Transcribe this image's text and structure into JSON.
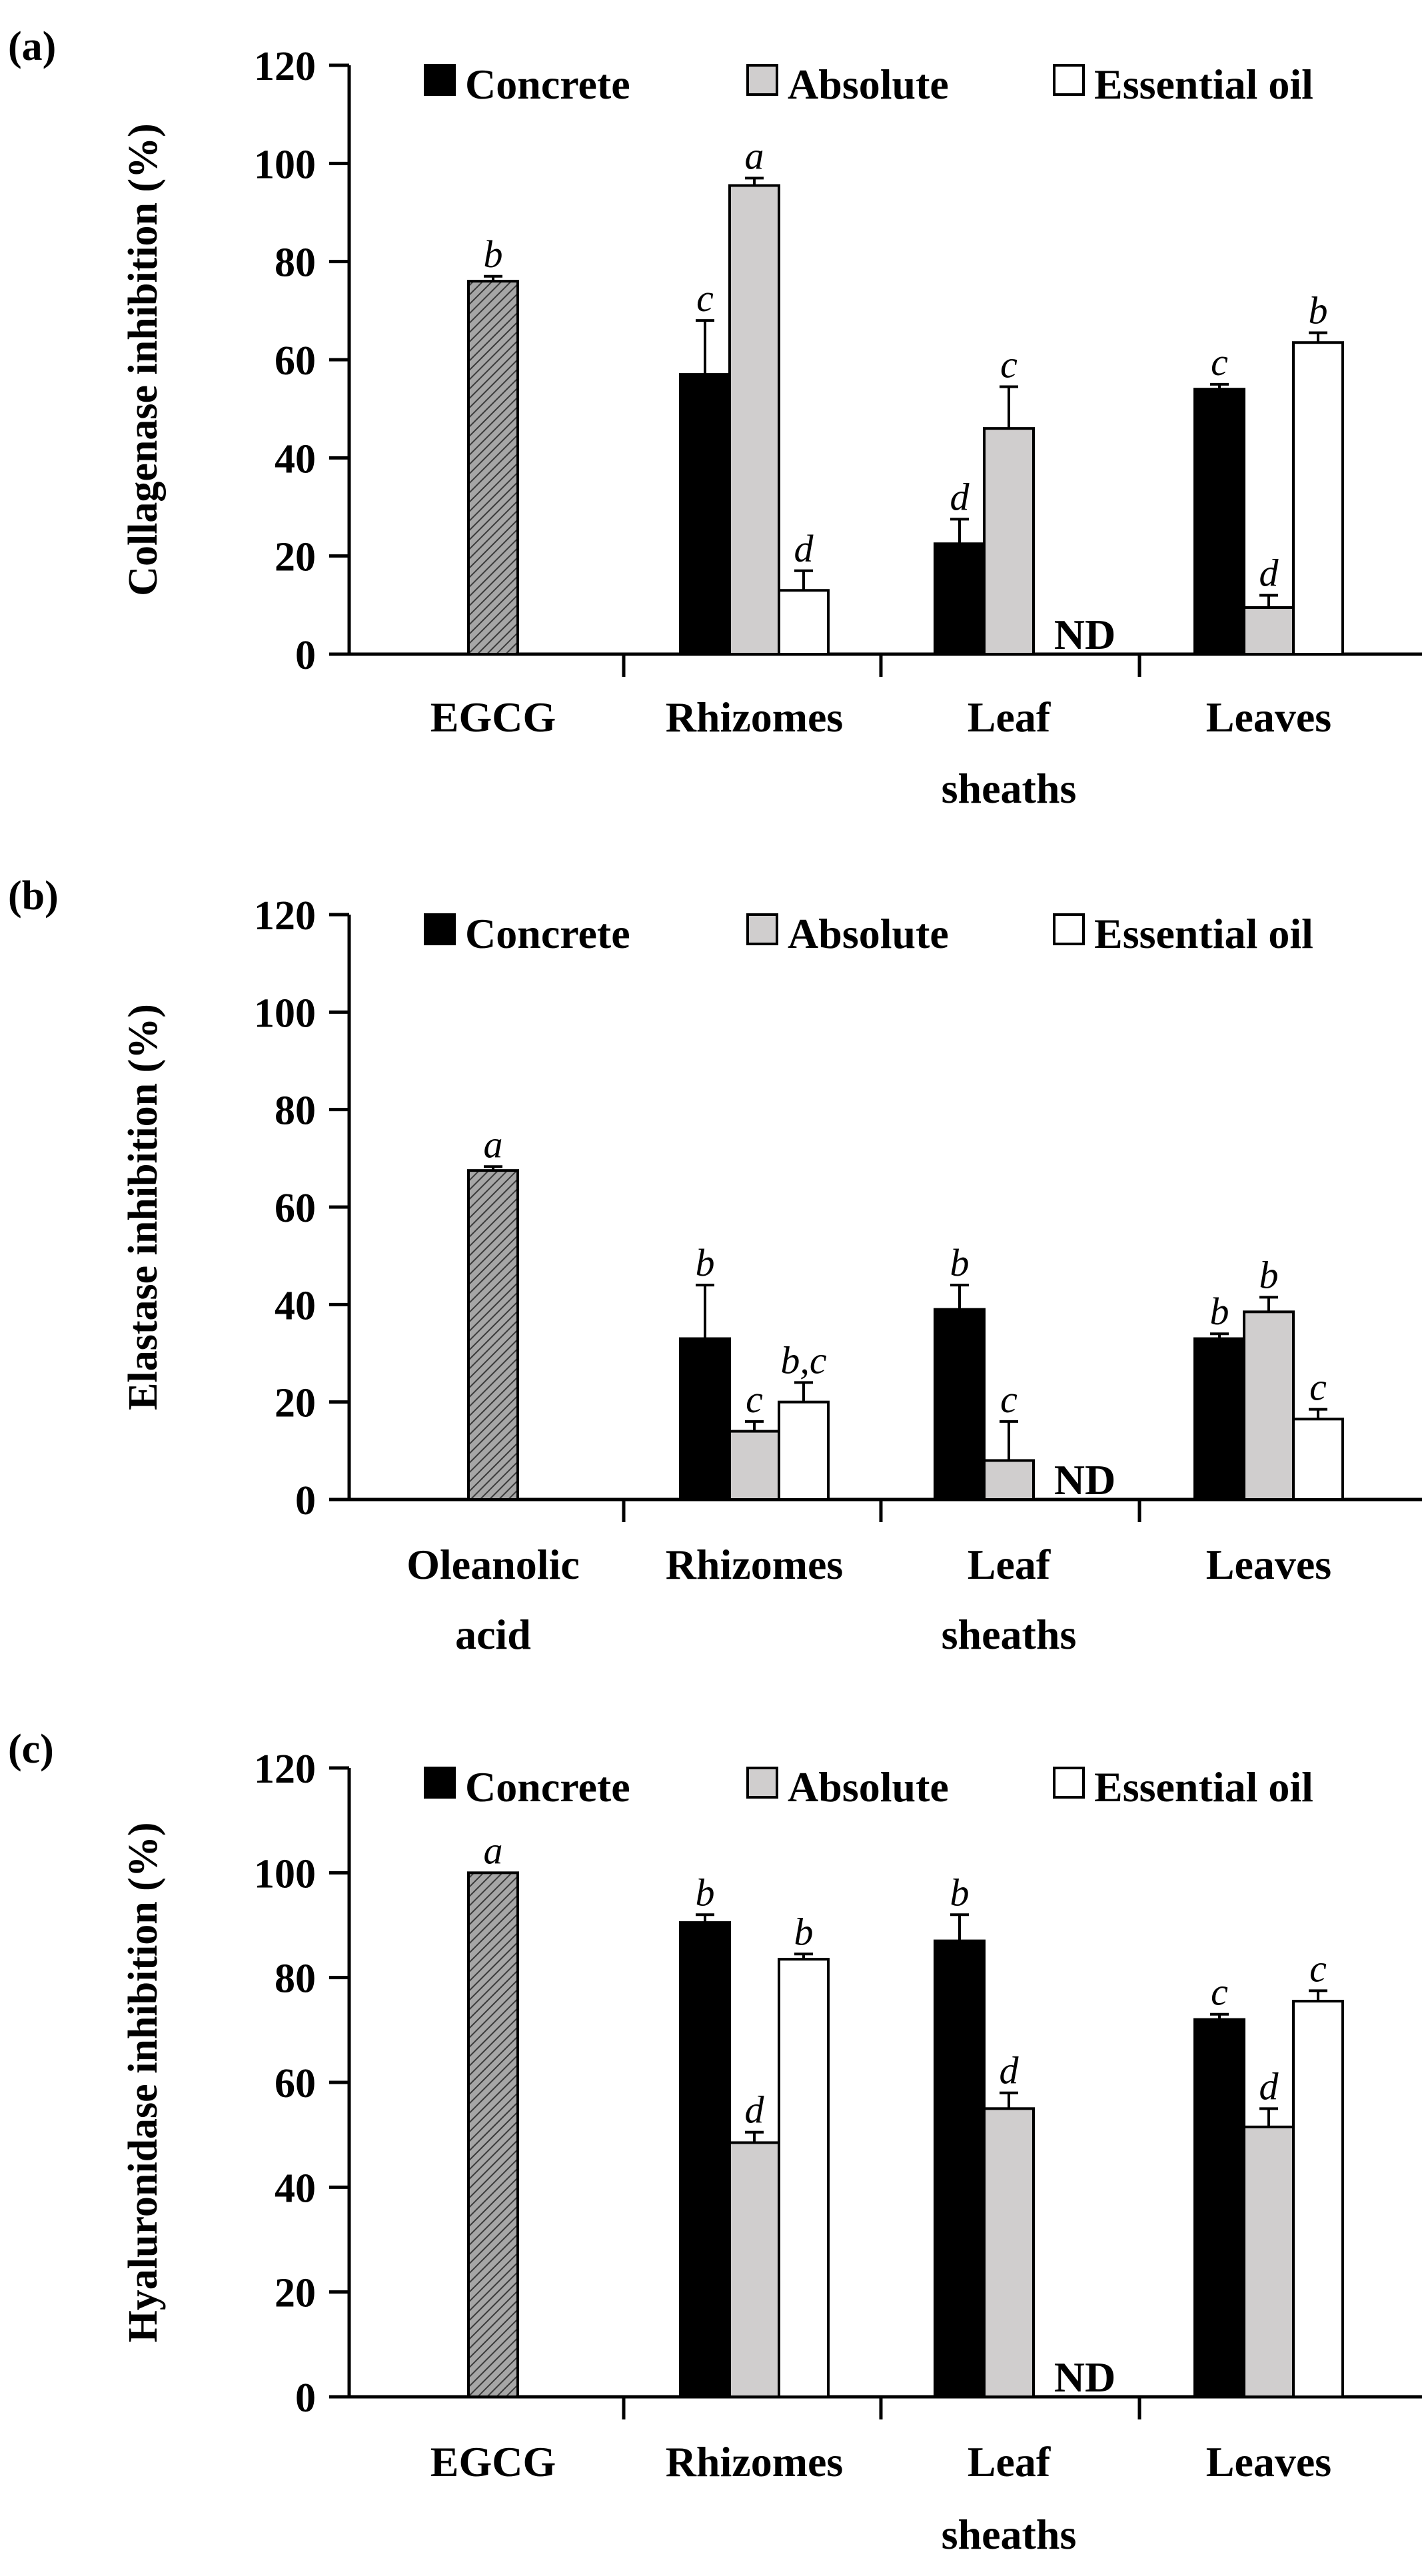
{
  "colors": {
    "concrete": "#000000",
    "absolute": "#d0cece",
    "essential_oil": "#ffffff",
    "control_hatch": "#a6a6a6",
    "stroke": "#000000"
  },
  "chart_data": [
    {
      "type": "bar",
      "panel": "(a)",
      "ylabel": "Collagenase inhibition (%)",
      "ylim": [
        0,
        120
      ],
      "yticks": [
        0,
        20,
        40,
        60,
        80,
        100,
        120
      ],
      "legend": {
        "placement": "top",
        "entries": [
          "Concrete",
          "Absolute",
          "Essential oil"
        ]
      },
      "categories": [
        {
          "label": [
            "EGCG"
          ],
          "control": true
        },
        {
          "label": [
            "Rhizomes"
          ]
        },
        {
          "label": [
            "Leaf",
            "sheaths"
          ]
        },
        {
          "label": [
            "Leaves"
          ]
        }
      ],
      "control": {
        "value": 76,
        "error": 1,
        "sig": "b"
      },
      "series": [
        {
          "name": "Concrete",
          "values": [
            null,
            57,
            22.5,
            54
          ],
          "errors": [
            null,
            11,
            5,
            1
          ],
          "sig": [
            "",
            "c",
            "d",
            "c"
          ]
        },
        {
          "name": "Absolute",
          "values": [
            null,
            95.5,
            46,
            9.5
          ],
          "errors": [
            null,
            1.5,
            8.5,
            2.5
          ],
          "sig": [
            "",
            "a",
            "c",
            "d"
          ]
        },
        {
          "name": "Essential oil",
          "values": [
            null,
            13,
            null,
            63.5
          ],
          "errors": [
            null,
            4,
            null,
            2
          ],
          "sig": [
            "",
            "d",
            "",
            "b"
          ]
        }
      ],
      "nd": {
        "category_index": 2,
        "text": "ND"
      }
    },
    {
      "type": "bar",
      "panel": "(b)",
      "ylabel": "Elastase inhibition (%)",
      "ylim": [
        0,
        120
      ],
      "yticks": [
        0,
        20,
        40,
        60,
        80,
        100,
        120
      ],
      "legend": {
        "placement": "top",
        "entries": [
          "Concrete",
          "Absolute",
          "Essential oil"
        ]
      },
      "categories": [
        {
          "label": [
            "Oleanolic",
            "acid"
          ],
          "control": true
        },
        {
          "label": [
            "Rhizomes"
          ]
        },
        {
          "label": [
            "Leaf",
            "sheaths"
          ]
        },
        {
          "label": [
            "Leaves"
          ]
        }
      ],
      "control": {
        "value": 67.5,
        "error": 0.8,
        "sig": "a"
      },
      "series": [
        {
          "name": "Concrete",
          "values": [
            null,
            33,
            39,
            33
          ],
          "errors": [
            null,
            11,
            5,
            1
          ],
          "sig": [
            "",
            "b",
            "b",
            "b"
          ]
        },
        {
          "name": "Absolute",
          "values": [
            null,
            14,
            8,
            38.5
          ],
          "errors": [
            null,
            2,
            8,
            3
          ],
          "sig": [
            "",
            "c",
            "c",
            "b"
          ]
        },
        {
          "name": "Essential oil",
          "values": [
            null,
            20,
            null,
            16.5
          ],
          "errors": [
            null,
            4,
            null,
            2
          ],
          "sig": [
            "",
            "b,c",
            "",
            "c"
          ]
        }
      ],
      "nd": {
        "category_index": 2,
        "text": "ND"
      }
    },
    {
      "type": "bar",
      "panel": "(c)",
      "ylabel": "Hyaluronidase inhibition (%)",
      "ylim": [
        0,
        120
      ],
      "yticks": [
        0,
        20,
        40,
        60,
        80,
        100,
        120
      ],
      "legend": {
        "placement": "top",
        "entries": [
          "Concrete",
          "Absolute",
          "Essential oil"
        ]
      },
      "categories": [
        {
          "label": [
            "EGCG"
          ],
          "control": true
        },
        {
          "label": [
            "Rhizomes"
          ]
        },
        {
          "label": [
            "Leaf",
            "sheaths"
          ]
        },
        {
          "label": [
            "Leaves"
          ]
        }
      ],
      "control": {
        "value": 100,
        "error": 0,
        "sig": "a"
      },
      "series": [
        {
          "name": "Concrete",
          "values": [
            null,
            90.5,
            87,
            72
          ],
          "errors": [
            null,
            1.5,
            5,
            1
          ],
          "sig": [
            "",
            "b",
            "b",
            "c"
          ]
        },
        {
          "name": "Absolute",
          "values": [
            null,
            48.5,
            55,
            51.5
          ],
          "errors": [
            null,
            2,
            3,
            3.5
          ],
          "sig": [
            "",
            "d",
            "d",
            "d"
          ]
        },
        {
          "name": "Essential oil",
          "values": [
            null,
            83.5,
            null,
            75.5
          ],
          "errors": [
            null,
            1,
            null,
            2
          ],
          "sig": [
            "",
            "b",
            "",
            "c"
          ]
        }
      ],
      "nd": {
        "category_index": 2,
        "text": "ND"
      }
    }
  ]
}
